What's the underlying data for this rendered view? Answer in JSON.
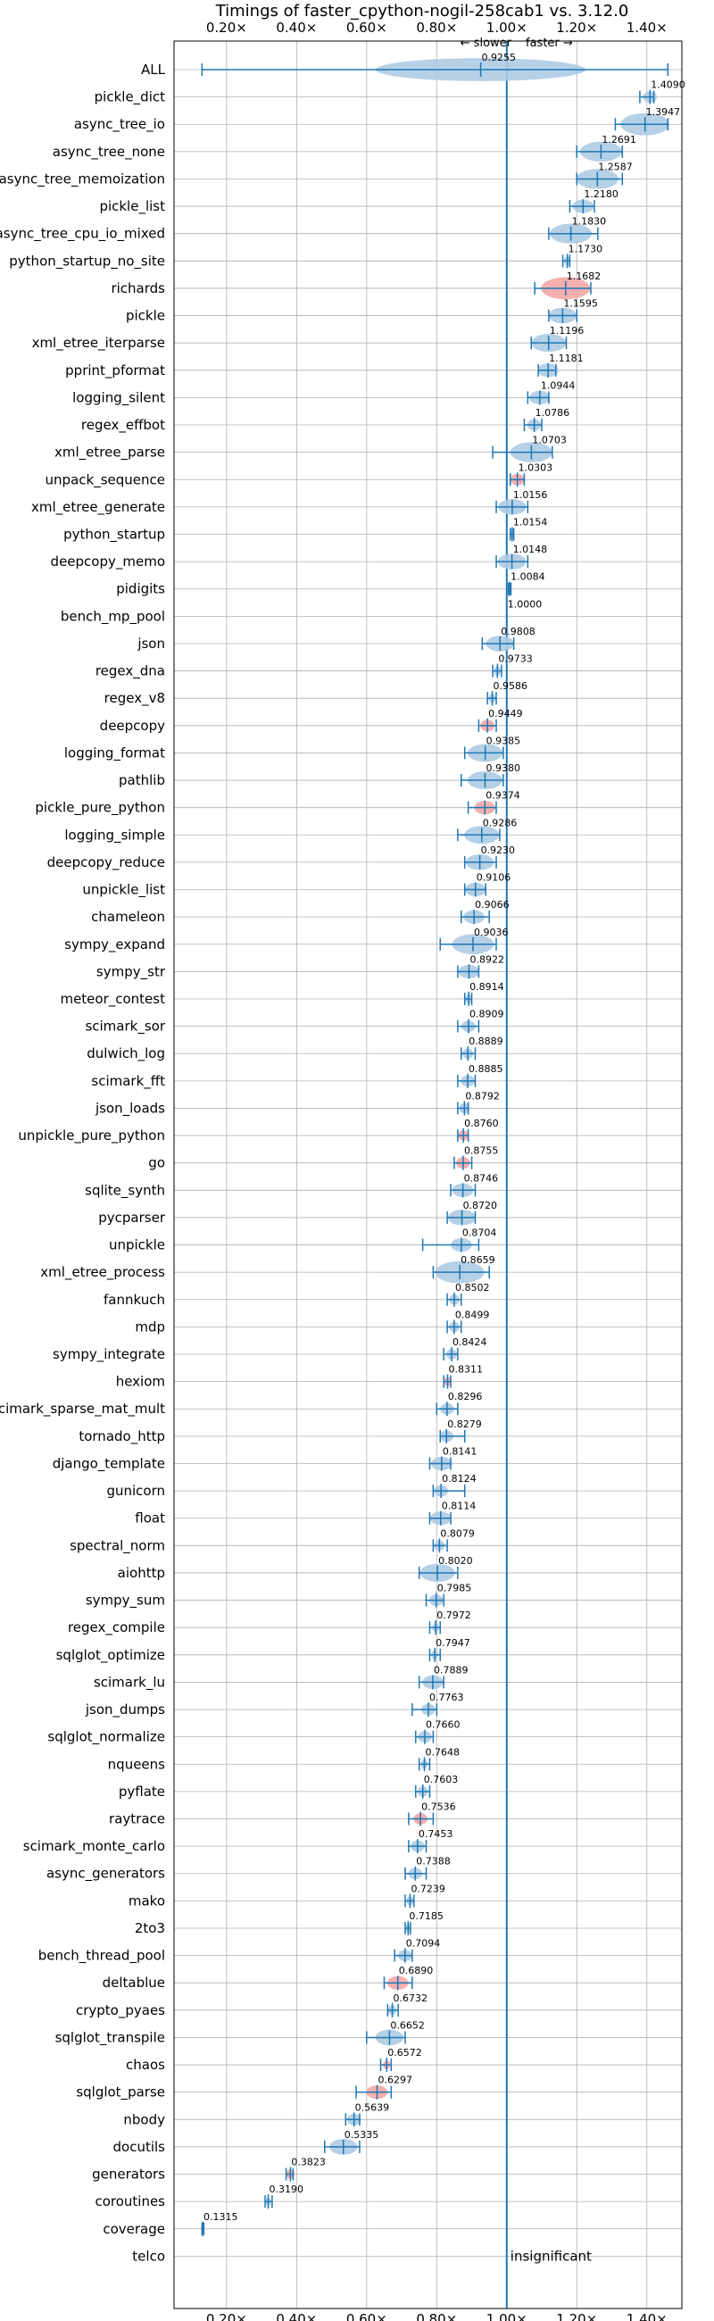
{
  "chart_data": {
    "type": "violin",
    "title": "Timings of faster_cpython-nogil-258cab1 vs. 3.12.0",
    "direction_labels": {
      "slower": "← slower",
      "faster": "faster →"
    },
    "x_ticks": [
      "0.20×",
      "0.40×",
      "0.60×",
      "0.80×",
      "1.00×",
      "1.20×",
      "1.40×"
    ],
    "x_tick_values": [
      0.2,
      0.4,
      0.6,
      0.8,
      1.0,
      1.2,
      1.4
    ],
    "xlim": [
      0.05,
      1.5
    ],
    "reference_line": 1.0,
    "grid": true,
    "colors": {
      "significant": "#aecbe3",
      "regression": "#f4a6a6",
      "line": "#1f77b4"
    },
    "insignificant_label": "insignificant",
    "benchmarks": [
      {
        "name": "ALL",
        "value": 0.9255,
        "label": "0.9255",
        "min": 0.13,
        "max": 1.46,
        "spread": 0.3,
        "regression": false
      },
      {
        "name": "pickle_dict",
        "value": 1.409,
        "label": "1.4090",
        "min": 1.38,
        "max": 1.42,
        "spread": 0.02,
        "regression": false
      },
      {
        "name": "async_tree_io",
        "value": 1.3947,
        "label": "1.3947",
        "min": 1.31,
        "max": 1.46,
        "spread": 0.07,
        "regression": false
      },
      {
        "name": "async_tree_none",
        "value": 1.2691,
        "label": "1.2691",
        "min": 1.2,
        "max": 1.33,
        "spread": 0.06,
        "regression": false
      },
      {
        "name": "async_tree_memoization",
        "value": 1.2587,
        "label": "1.2587",
        "min": 1.2,
        "max": 1.33,
        "spread": 0.06,
        "regression": false
      },
      {
        "name": "pickle_list",
        "value": 1.218,
        "label": "1.2180",
        "min": 1.18,
        "max": 1.25,
        "spread": 0.03,
        "regression": false
      },
      {
        "name": "async_tree_cpu_io_mixed",
        "value": 1.183,
        "label": "1.1830",
        "min": 1.12,
        "max": 1.26,
        "spread": 0.06,
        "regression": false
      },
      {
        "name": "python_startup_no_site",
        "value": 1.173,
        "label": "1.1730",
        "min": 1.16,
        "max": 1.18,
        "spread": 0.01,
        "regression": false
      },
      {
        "name": "richards",
        "value": 1.1682,
        "label": "1.1682",
        "min": 1.08,
        "max": 1.24,
        "spread": 0.07,
        "regression": true
      },
      {
        "name": "pickle",
        "value": 1.1595,
        "label": "1.1595",
        "min": 1.12,
        "max": 1.2,
        "spread": 0.04,
        "regression": false
      },
      {
        "name": "xml_etree_iterparse",
        "value": 1.1196,
        "label": "1.1196",
        "min": 1.07,
        "max": 1.17,
        "spread": 0.05,
        "regression": false
      },
      {
        "name": "pprint_pformat",
        "value": 1.1181,
        "label": "1.1181",
        "min": 1.09,
        "max": 1.14,
        "spread": 0.03,
        "regression": false
      },
      {
        "name": "logging_silent",
        "value": 1.0944,
        "label": "1.0944",
        "min": 1.06,
        "max": 1.12,
        "spread": 0.03,
        "regression": false
      },
      {
        "name": "regex_effbot",
        "value": 1.0786,
        "label": "1.0786",
        "min": 1.05,
        "max": 1.1,
        "spread": 0.02,
        "regression": false
      },
      {
        "name": "xml_etree_parse",
        "value": 1.0703,
        "label": "1.0703",
        "min": 0.96,
        "max": 1.13,
        "spread": 0.06,
        "regression": false
      },
      {
        "name": "unpack_sequence",
        "value": 1.0303,
        "label": "1.0303",
        "min": 1.01,
        "max": 1.05,
        "spread": 0.02,
        "regression": true
      },
      {
        "name": "xml_etree_generate",
        "value": 1.0156,
        "label": "1.0156",
        "min": 0.97,
        "max": 1.06,
        "spread": 0.04,
        "regression": false
      },
      {
        "name": "python_startup",
        "value": 1.0154,
        "label": "1.0154",
        "min": 1.01,
        "max": 1.02,
        "spread": 0.005,
        "regression": false
      },
      {
        "name": "deepcopy_memo",
        "value": 1.0148,
        "label": "1.0148",
        "min": 0.97,
        "max": 1.06,
        "spread": 0.04,
        "regression": false
      },
      {
        "name": "pidigits",
        "value": 1.0084,
        "label": "1.0084",
        "min": 1.005,
        "max": 1.012,
        "spread": 0.003,
        "regression": false
      },
      {
        "name": "bench_mp_pool",
        "value": 1.0,
        "label": "1.0000",
        "min": 1.0,
        "max": 1.0,
        "spread": 0.002,
        "regression": false
      },
      {
        "name": "json",
        "value": 0.9808,
        "label": "0.9808",
        "min": 0.93,
        "max": 1.02,
        "spread": 0.04,
        "regression": false
      },
      {
        "name": "regex_dna",
        "value": 0.9733,
        "label": "0.9733",
        "min": 0.96,
        "max": 0.985,
        "spread": 0.01,
        "regression": false
      },
      {
        "name": "regex_v8",
        "value": 0.9586,
        "label": "0.9586",
        "min": 0.945,
        "max": 0.97,
        "spread": 0.01,
        "regression": false
      },
      {
        "name": "deepcopy",
        "value": 0.9449,
        "label": "0.9449",
        "min": 0.92,
        "max": 0.97,
        "spread": 0.02,
        "regression": true
      },
      {
        "name": "logging_format",
        "value": 0.9385,
        "label": "0.9385",
        "min": 0.88,
        "max": 0.99,
        "spread": 0.05,
        "regression": false
      },
      {
        "name": "pathlib",
        "value": 0.938,
        "label": "0.9380",
        "min": 0.87,
        "max": 0.99,
        "spread": 0.05,
        "regression": false
      },
      {
        "name": "pickle_pure_python",
        "value": 0.9374,
        "label": "0.9374",
        "min": 0.89,
        "max": 0.97,
        "spread": 0.03,
        "regression": true
      },
      {
        "name": "logging_simple",
        "value": 0.9286,
        "label": "0.9286",
        "min": 0.86,
        "max": 0.98,
        "spread": 0.05,
        "regression": false
      },
      {
        "name": "deepcopy_reduce",
        "value": 0.923,
        "label": "0.9230",
        "min": 0.88,
        "max": 0.97,
        "spread": 0.04,
        "regression": false
      },
      {
        "name": "unpickle_list",
        "value": 0.9106,
        "label": "0.9106",
        "min": 0.88,
        "max": 0.94,
        "spread": 0.03,
        "regression": false
      },
      {
        "name": "chameleon",
        "value": 0.9066,
        "label": "0.9066",
        "min": 0.87,
        "max": 0.95,
        "spread": 0.03,
        "regression": false
      },
      {
        "name": "sympy_expand",
        "value": 0.9036,
        "label": "0.9036",
        "min": 0.81,
        "max": 0.97,
        "spread": 0.06,
        "regression": false
      },
      {
        "name": "sympy_str",
        "value": 0.8922,
        "label": "0.8922",
        "min": 0.86,
        "max": 0.92,
        "spread": 0.03,
        "regression": false
      },
      {
        "name": "meteor_contest",
        "value": 0.8914,
        "label": "0.8914",
        "min": 0.88,
        "max": 0.9,
        "spread": 0.01,
        "regression": false
      },
      {
        "name": "scimark_sor",
        "value": 0.8909,
        "label": "0.8909",
        "min": 0.86,
        "max": 0.92,
        "spread": 0.02,
        "regression": false
      },
      {
        "name": "dulwich_log",
        "value": 0.8889,
        "label": "0.8889",
        "min": 0.87,
        "max": 0.91,
        "spread": 0.015,
        "regression": false
      },
      {
        "name": "scimark_fft",
        "value": 0.8885,
        "label": "0.8885",
        "min": 0.86,
        "max": 0.91,
        "spread": 0.02,
        "regression": false
      },
      {
        "name": "json_loads",
        "value": 0.8792,
        "label": "0.8792",
        "min": 0.86,
        "max": 0.89,
        "spread": 0.015,
        "regression": false
      },
      {
        "name": "unpickle_pure_python",
        "value": 0.876,
        "label": "0.8760",
        "min": 0.86,
        "max": 0.89,
        "spread": 0.015,
        "regression": true
      },
      {
        "name": "go",
        "value": 0.8755,
        "label": "0.8755",
        "min": 0.85,
        "max": 0.9,
        "spread": 0.02,
        "regression": true
      },
      {
        "name": "sqlite_synth",
        "value": 0.8746,
        "label": "0.8746",
        "min": 0.84,
        "max": 0.91,
        "spread": 0.03,
        "regression": false
      },
      {
        "name": "pycparser",
        "value": 0.872,
        "label": "0.8720",
        "min": 0.83,
        "max": 0.91,
        "spread": 0.04,
        "regression": false
      },
      {
        "name": "unpickle",
        "value": 0.8704,
        "label": "0.8704",
        "min": 0.76,
        "max": 0.92,
        "spread": 0.03,
        "regression": false
      },
      {
        "name": "xml_etree_process",
        "value": 0.8659,
        "label": "0.8659",
        "min": 0.79,
        "max": 0.95,
        "spread": 0.07,
        "regression": false
      },
      {
        "name": "fannkuch",
        "value": 0.8502,
        "label": "0.8502",
        "min": 0.83,
        "max": 0.87,
        "spread": 0.015,
        "regression": false
      },
      {
        "name": "mdp",
        "value": 0.8499,
        "label": "0.8499",
        "min": 0.83,
        "max": 0.87,
        "spread": 0.015,
        "regression": false
      },
      {
        "name": "sympy_integrate",
        "value": 0.8424,
        "label": "0.8424",
        "min": 0.82,
        "max": 0.86,
        "spread": 0.015,
        "regression": false
      },
      {
        "name": "hexiom",
        "value": 0.8311,
        "label": "0.8311",
        "min": 0.82,
        "max": 0.84,
        "spread": 0.01,
        "regression": true
      },
      {
        "name": "scimark_sparse_mat_mult",
        "value": 0.8296,
        "label": "0.8296",
        "min": 0.8,
        "max": 0.86,
        "spread": 0.02,
        "regression": false
      },
      {
        "name": "tornado_http",
        "value": 0.8279,
        "label": "0.8279",
        "min": 0.81,
        "max": 0.88,
        "spread": 0.02,
        "regression": false
      },
      {
        "name": "django_template",
        "value": 0.8141,
        "label": "0.8141",
        "min": 0.78,
        "max": 0.84,
        "spread": 0.03,
        "regression": false
      },
      {
        "name": "gunicorn",
        "value": 0.8124,
        "label": "0.8124",
        "min": 0.79,
        "max": 0.88,
        "spread": 0.02,
        "regression": false
      },
      {
        "name": "float",
        "value": 0.8114,
        "label": "0.8114",
        "min": 0.78,
        "max": 0.84,
        "spread": 0.03,
        "regression": false
      },
      {
        "name": "spectral_norm",
        "value": 0.8079,
        "label": "0.8079",
        "min": 0.79,
        "max": 0.83,
        "spread": 0.015,
        "regression": false
      },
      {
        "name": "aiohttp",
        "value": 0.802,
        "label": "0.8020",
        "min": 0.75,
        "max": 0.86,
        "spread": 0.05,
        "regression": false
      },
      {
        "name": "sympy_sum",
        "value": 0.7985,
        "label": "0.7985",
        "min": 0.77,
        "max": 0.82,
        "spread": 0.02,
        "regression": false
      },
      {
        "name": "regex_compile",
        "value": 0.7972,
        "label": "0.7972",
        "min": 0.78,
        "max": 0.81,
        "spread": 0.01,
        "regression": false
      },
      {
        "name": "sqlglot_optimize",
        "value": 0.7947,
        "label": "0.7947",
        "min": 0.78,
        "max": 0.81,
        "spread": 0.01,
        "regression": false
      },
      {
        "name": "scimark_lu",
        "value": 0.7889,
        "label": "0.7889",
        "min": 0.75,
        "max": 0.82,
        "spread": 0.03,
        "regression": false
      },
      {
        "name": "json_dumps",
        "value": 0.7763,
        "label": "0.7763",
        "min": 0.73,
        "max": 0.8,
        "spread": 0.02,
        "regression": false
      },
      {
        "name": "sqlglot_normalize",
        "value": 0.766,
        "label": "0.7660",
        "min": 0.74,
        "max": 0.79,
        "spread": 0.02,
        "regression": false
      },
      {
        "name": "nqueens",
        "value": 0.7648,
        "label": "0.7648",
        "min": 0.75,
        "max": 0.78,
        "spread": 0.01,
        "regression": false
      },
      {
        "name": "pyflate",
        "value": 0.7603,
        "label": "0.7603",
        "min": 0.74,
        "max": 0.78,
        "spread": 0.015,
        "regression": false
      },
      {
        "name": "raytrace",
        "value": 0.7536,
        "label": "0.7536",
        "min": 0.72,
        "max": 0.79,
        "spread": 0.02,
        "regression": true
      },
      {
        "name": "scimark_monte_carlo",
        "value": 0.7453,
        "label": "0.7453",
        "min": 0.72,
        "max": 0.77,
        "spread": 0.02,
        "regression": false
      },
      {
        "name": "async_generators",
        "value": 0.7388,
        "label": "0.7388",
        "min": 0.71,
        "max": 0.77,
        "spread": 0.02,
        "regression": false
      },
      {
        "name": "mako",
        "value": 0.7239,
        "label": "0.7239",
        "min": 0.71,
        "max": 0.735,
        "spread": 0.01,
        "regression": false
      },
      {
        "name": "2to3",
        "value": 0.7185,
        "label": "0.7185",
        "min": 0.71,
        "max": 0.725,
        "spread": 0.008,
        "regression": false
      },
      {
        "name": "bench_thread_pool",
        "value": 0.7094,
        "label": "0.7094",
        "min": 0.68,
        "max": 0.73,
        "spread": 0.02,
        "regression": false
      },
      {
        "name": "deltablue",
        "value": 0.689,
        "label": "0.6890",
        "min": 0.65,
        "max": 0.73,
        "spread": 0.03,
        "regression": true
      },
      {
        "name": "crypto_pyaes",
        "value": 0.6732,
        "label": "0.6732",
        "min": 0.66,
        "max": 0.69,
        "spread": 0.012,
        "regression": false
      },
      {
        "name": "sqlglot_transpile",
        "value": 0.6652,
        "label": "0.6652",
        "min": 0.6,
        "max": 0.71,
        "spread": 0.04,
        "regression": false
      },
      {
        "name": "chaos",
        "value": 0.6572,
        "label": "0.6572",
        "min": 0.64,
        "max": 0.67,
        "spread": 0.01,
        "regression": true
      },
      {
        "name": "sqlglot_parse",
        "value": 0.6297,
        "label": "0.6297",
        "min": 0.57,
        "max": 0.67,
        "spread": 0.03,
        "regression": true
      },
      {
        "name": "nbody",
        "value": 0.5639,
        "label": "0.5639",
        "min": 0.54,
        "max": 0.58,
        "spread": 0.02,
        "regression": false
      },
      {
        "name": "docutils",
        "value": 0.5335,
        "label": "0.5335",
        "min": 0.48,
        "max": 0.58,
        "spread": 0.04,
        "regression": false
      },
      {
        "name": "generators",
        "value": 0.3823,
        "label": "0.3823",
        "min": 0.37,
        "max": 0.39,
        "spread": 0.012,
        "regression": true
      },
      {
        "name": "coroutines",
        "value": 0.319,
        "label": "0.3190",
        "min": 0.31,
        "max": 0.33,
        "spread": 0.008,
        "regression": false
      },
      {
        "name": "coverage",
        "value": 0.1315,
        "label": "0.1315",
        "min": 0.13,
        "max": 0.135,
        "spread": 0.003,
        "regression": false
      },
      {
        "name": "telco",
        "value": null,
        "label": "",
        "min": null,
        "max": null,
        "spread": 0,
        "regression": false,
        "insignificant": true
      }
    ]
  }
}
